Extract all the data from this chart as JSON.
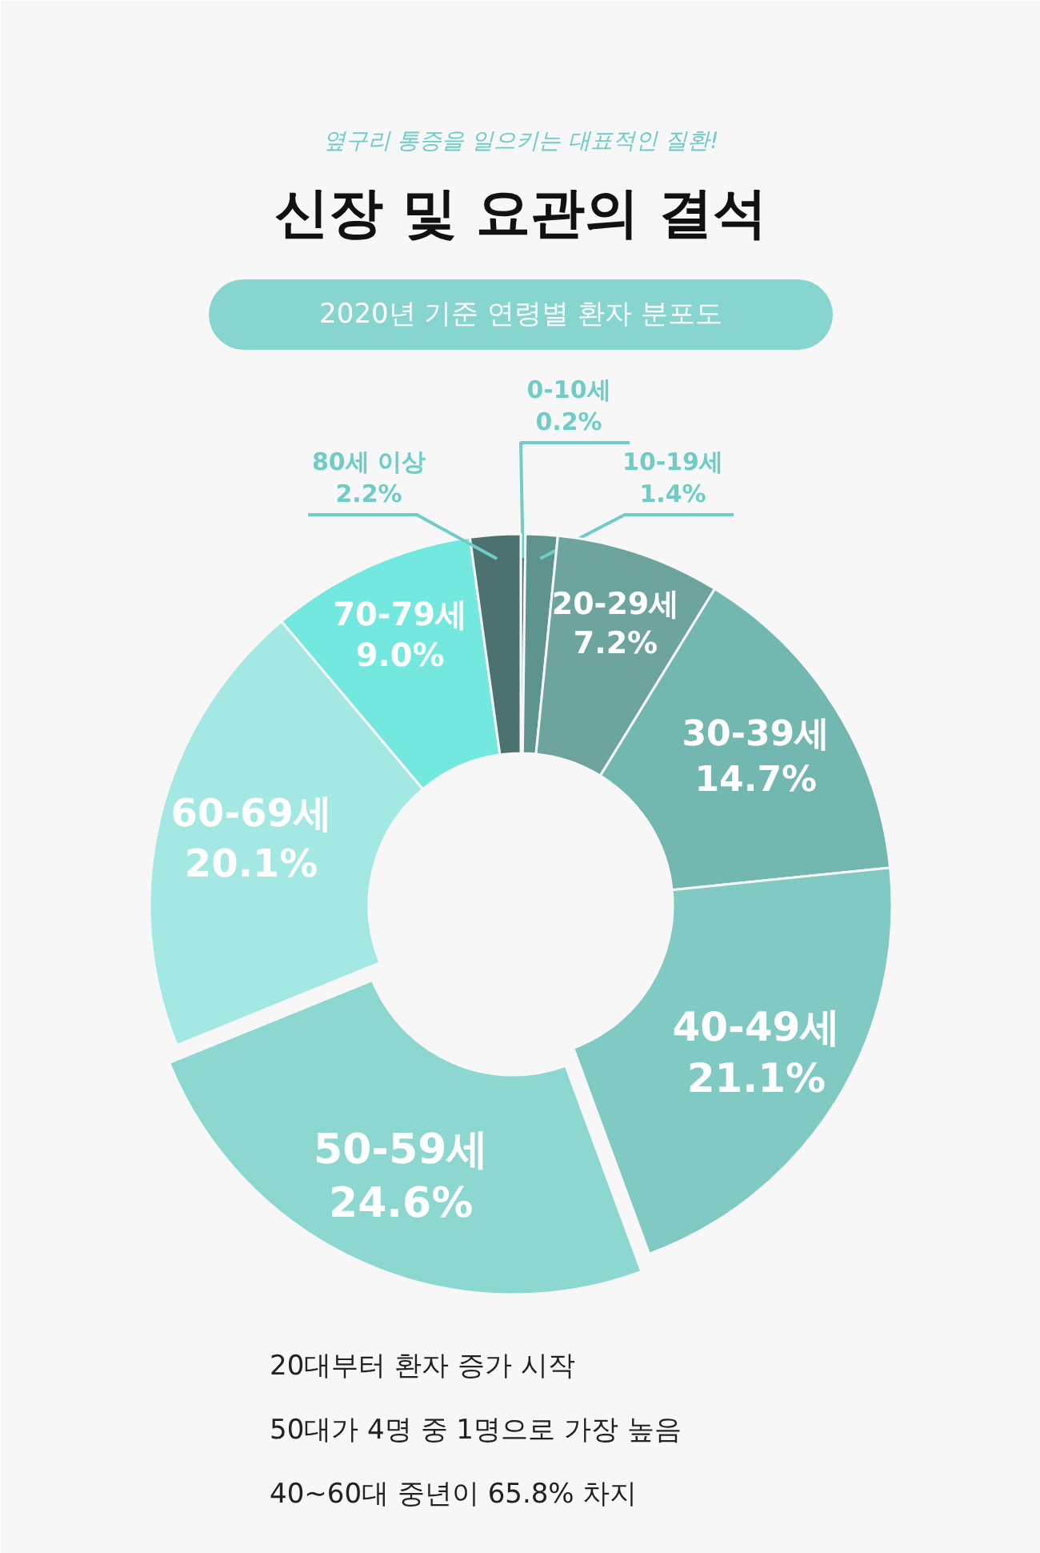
{
  "chart_data": {
    "type": "donut",
    "title": "신장 및 요관의 결석",
    "subtitle": "2020년 기준 연령별 환자 분포도",
    "categories": [
      "0-10세",
      "10-19세",
      "20-29세",
      "30-39세",
      "40-49세",
      "50-59세",
      "60-69세",
      "70-79세",
      "80세 이상"
    ],
    "values": [
      0.2,
      1.4,
      7.2,
      14.7,
      21.1,
      24.6,
      20.1,
      9.0,
      2.2
    ],
    "colors": [
      "#3f6e6a",
      "#5e938e",
      "#6ea49e",
      "#73b8b0",
      "#80cac3",
      "#8cd8d0",
      "#a4e8e3",
      "#72e8df",
      "#4b726f"
    ],
    "value_labels": [
      "0.2%",
      "1.4%",
      "7.2%",
      "14.7%",
      "21.1%",
      "24.6%",
      "20.1%",
      "9.0%",
      "2.2%"
    ],
    "annotations": [
      "옆구리 통증을 일으키는 대표적인 질환!",
      "20대부터 환자 증가 시작",
      "50대가 4명 중 1명으로 가장 높음",
      "40~60대 중년이 65.8% 차지"
    ]
  }
}
